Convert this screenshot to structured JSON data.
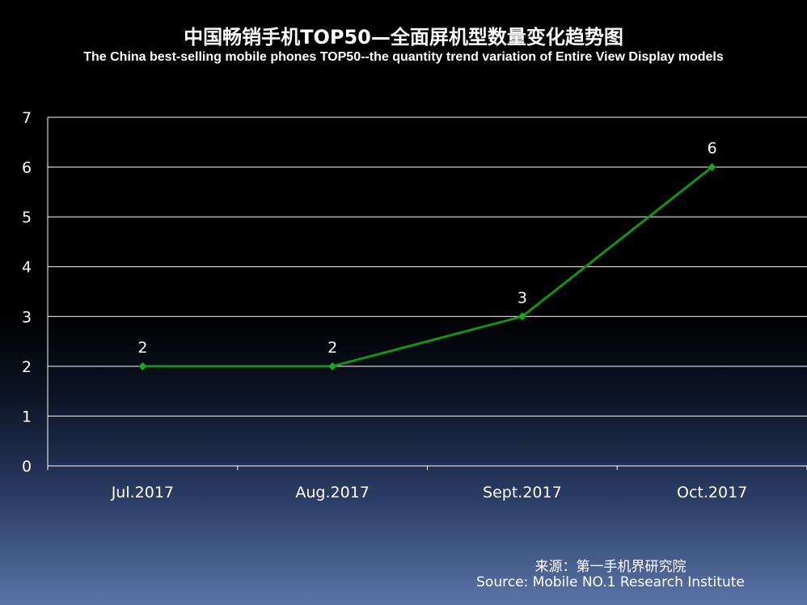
{
  "slide": {
    "title": "中国畅销手机TOP50—全面屏机型数量变化趋势图",
    "subtitle": "The China best-selling mobile phones TOP50--the quantity trend variation of Entire View Display models",
    "source_cn": "来源：第一手机界研究院",
    "source_en": "Source: Mobile NO.1 Research Institute"
  },
  "chart_data": {
    "type": "line",
    "title": "中国畅销手机TOP50—全面屏机型数量变化趋势图",
    "subtitle": "The China best-selling mobile phones TOP50--the quantity trend variation of Entire View Display models",
    "categories": [
      "Jul.2017",
      "Aug.2017",
      "Sept.2017",
      "Oct.2017"
    ],
    "series": [
      {
        "values": [
          2,
          2,
          3,
          6
        ],
        "data_labels": [
          "2",
          "2",
          "3",
          "6"
        ]
      }
    ],
    "ylim": [
      0,
      7
    ],
    "yticks": [
      "0",
      "1",
      "2",
      "3",
      "4",
      "5",
      "6",
      "7"
    ],
    "grid": true,
    "legend": "none",
    "colors": {
      "line": "#139413",
      "marker": "#1ea51e",
      "grid": "#ffffff",
      "text": "#ffffff"
    }
  }
}
